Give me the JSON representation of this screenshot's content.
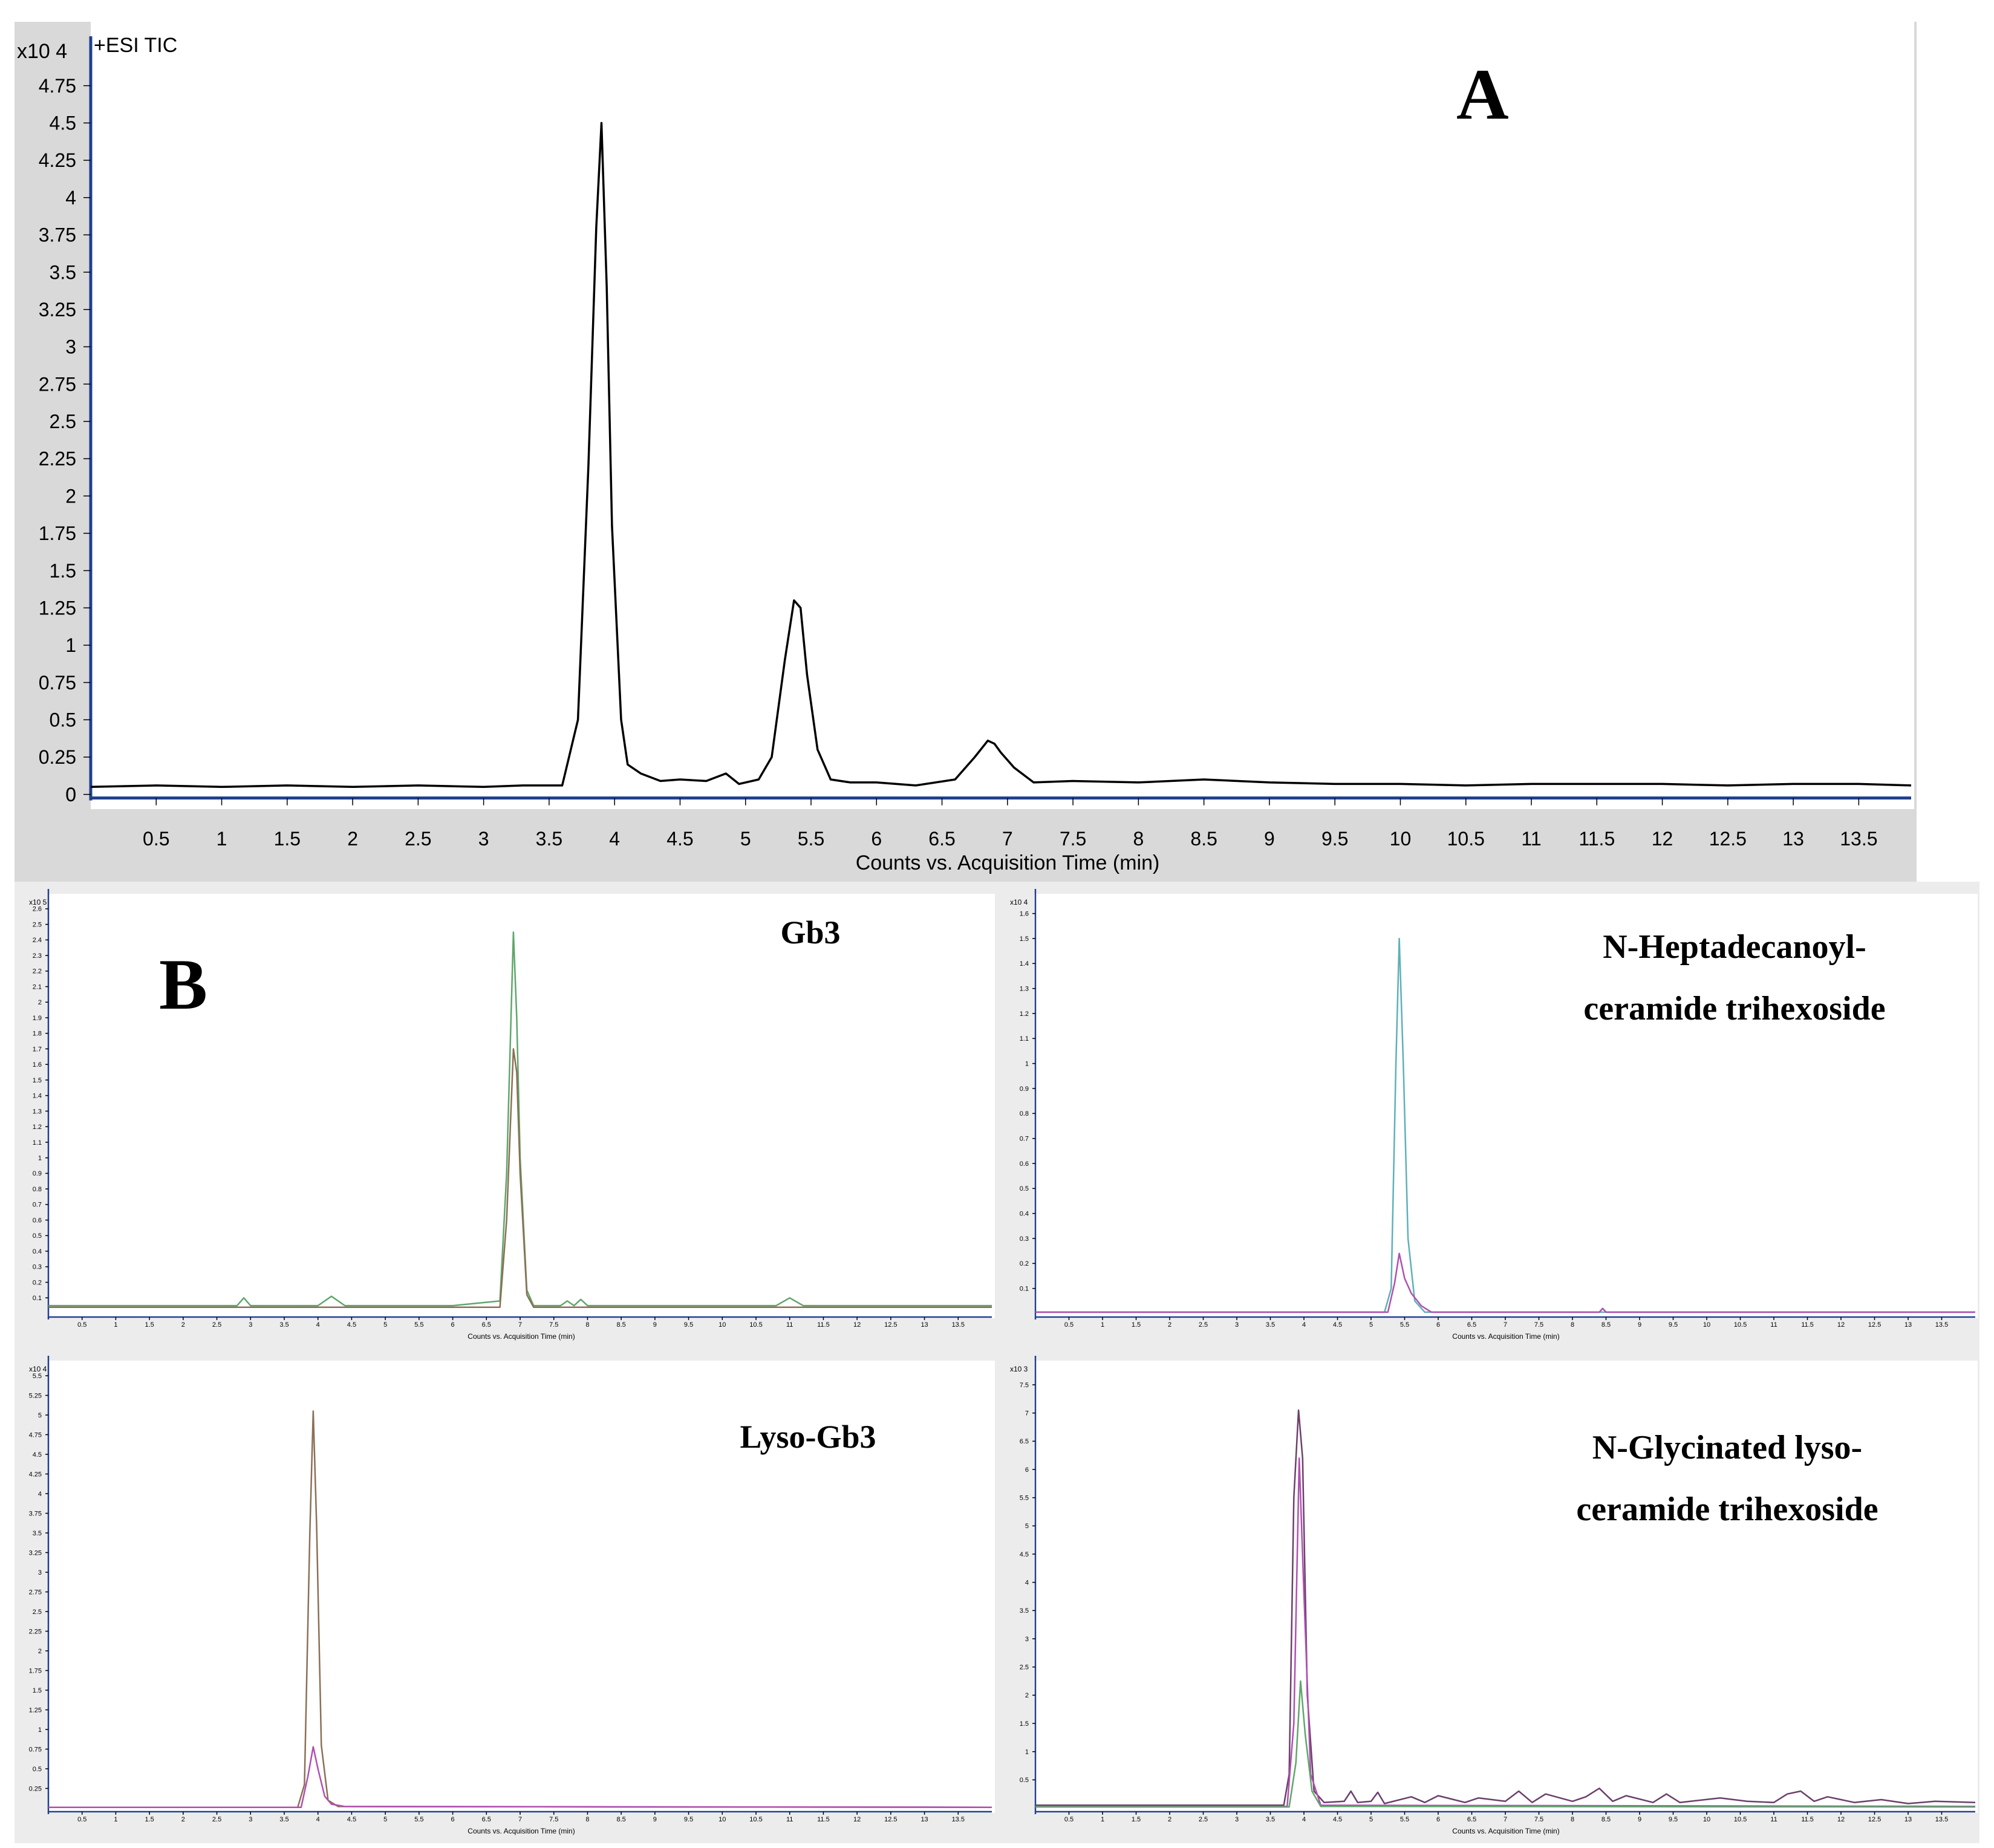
{
  "figure": {
    "panel_a_label": "A",
    "panel_b_label": "B",
    "colors": {
      "frame_gray": "#d9d9d9",
      "axis_blue": "#1f3f8f",
      "trace_black": "#000000",
      "green": "#5fa66b",
      "brown": "#8c6f55",
      "teal": "#5fb0b8",
      "magenta": "#b04fb0",
      "purple": "#6b3f6b",
      "gray_trace": "#666666"
    }
  },
  "chart_data": [
    {
      "id": "A",
      "type": "line",
      "title": "+ESI TIC",
      "xlabel": "Counts vs. Acquisition Time (min)",
      "ylabel": "",
      "y_multiplier": "x10 4",
      "xlim": [
        0,
        13.9
      ],
      "ylim": [
        -0.05,
        5.0
      ],
      "xticks": [
        0.5,
        1,
        1.5,
        2,
        2.5,
        3,
        3.5,
        4,
        4.5,
        5,
        5.5,
        6,
        6.5,
        7,
        7.5,
        8,
        8.5,
        9,
        9.5,
        10,
        10.5,
        11,
        11.5,
        12,
        12.5,
        13,
        13.5
      ],
      "xtick_labels": [
        "0.5",
        "1",
        "1.5",
        "2",
        "2.5",
        "3",
        "3.5",
        "4",
        "4.5",
        "5",
        "5.5",
        "6",
        "6.5",
        "7",
        "7.5",
        "8",
        "8.5",
        "9",
        "9.5",
        "10",
        "10.5",
        "11",
        "11.5",
        "12",
        "12.5",
        "13",
        "13.5"
      ],
      "yticks": [
        0,
        0.25,
        0.5,
        0.75,
        1,
        1.25,
        1.5,
        1.75,
        2,
        2.25,
        2.5,
        2.75,
        3,
        3.25,
        3.5,
        3.75,
        4,
        4.25,
        4.5,
        4.75
      ],
      "ytick_labels": [
        "0",
        "0.25",
        "0.5",
        "0.75",
        "1",
        "1.25",
        "1.5",
        "1.75",
        "2",
        "2.25",
        "2.5",
        "2.75",
        "3",
        "3.25",
        "3.5",
        "3.75",
        "4",
        "4.25",
        "4.5",
        "4.75"
      ],
      "series": [
        {
          "color": "#000000",
          "x": [
            0,
            0.5,
            1,
            1.5,
            2,
            2.5,
            3,
            3.3,
            3.6,
            3.72,
            3.8,
            3.86,
            3.9,
            3.94,
            3.98,
            4.05,
            4.1,
            4.2,
            4.35,
            4.5,
            4.7,
            4.85,
            4.95,
            5.1,
            5.2,
            5.3,
            5.37,
            5.42,
            5.47,
            5.55,
            5.65,
            5.8,
            6.0,
            6.3,
            6.6,
            6.75,
            6.85,
            6.9,
            6.95,
            7.05,
            7.2,
            7.5,
            8.0,
            8.5,
            9.0,
            9.5,
            10.0,
            10.5,
            11.0,
            11.5,
            12.0,
            12.5,
            13.0,
            13.5,
            13.9
          ],
          "y": [
            0.05,
            0.06,
            0.05,
            0.06,
            0.05,
            0.06,
            0.05,
            0.06,
            0.06,
            0.5,
            2.2,
            3.8,
            4.5,
            3.4,
            1.8,
            0.5,
            0.2,
            0.14,
            0.09,
            0.1,
            0.09,
            0.14,
            0.07,
            0.1,
            0.25,
            0.9,
            1.3,
            1.25,
            0.8,
            0.3,
            0.1,
            0.08,
            0.08,
            0.06,
            0.1,
            0.25,
            0.36,
            0.34,
            0.28,
            0.18,
            0.08,
            0.09,
            0.08,
            0.1,
            0.08,
            0.07,
            0.07,
            0.06,
            0.07,
            0.07,
            0.07,
            0.06,
            0.07,
            0.07,
            0.06
          ]
        }
      ]
    },
    {
      "id": "B1",
      "type": "line",
      "annotation": "Gb3",
      "xlabel": "Counts vs. Acquisition Time (min)",
      "y_multiplier": "x10 5",
      "xlim": [
        0,
        14
      ],
      "ylim": [
        0,
        2.65
      ],
      "xticks": [
        0.5,
        1,
        1.5,
        2,
        2.5,
        3,
        3.5,
        4,
        4.5,
        5,
        5.5,
        6,
        6.5,
        7,
        7.5,
        8,
        8.5,
        9,
        9.5,
        10,
        10.5,
        11,
        11.5,
        12,
        12.5,
        13,
        13.5
      ],
      "xtick_labels": [
        "0.5",
        "1",
        "1.5",
        "2",
        "2.5",
        "3",
        "3.5",
        "4",
        "4.5",
        "5",
        "5.5",
        "6",
        "6.5",
        "7",
        "7.5",
        "8",
        "8.5",
        "9",
        "9.5",
        "10",
        "10.5",
        "11",
        "11.5",
        "12",
        "12.5",
        "13",
        "13.5"
      ],
      "yticks": [
        0.1,
        0.2,
        0.3,
        0.4,
        0.5,
        0.6,
        0.7,
        0.8,
        0.9,
        1,
        1.1,
        1.2,
        1.3,
        1.4,
        1.5,
        1.6,
        1.7,
        1.8,
        1.9,
        2,
        2.1,
        2.2,
        2.3,
        2.4,
        2.5,
        2.6
      ],
      "ytick_labels": [
        "0.1",
        "0.2",
        "0.3",
        "0.4",
        "0.5",
        "0.6",
        "0.7",
        "0.8",
        "0.9",
        "1",
        "1.1",
        "1.2",
        "1.3",
        "1.4",
        "1.5",
        "1.6",
        "1.7",
        "1.8",
        "1.9",
        "2",
        "2.1",
        "2.2",
        "2.3",
        "2.4",
        "2.5",
        "2.6"
      ],
      "series": [
        {
          "color": "#5fa66b",
          "x": [
            0,
            2.8,
            2.9,
            3.0,
            4.0,
            4.2,
            4.4,
            6.0,
            6.7,
            6.8,
            6.9,
            6.95,
            7.0,
            7.1,
            7.2,
            7.6,
            7.7,
            7.8,
            7.9,
            8.0,
            8.2,
            10.8,
            11.0,
            11.2,
            14
          ],
          "y": [
            0.05,
            0.05,
            0.1,
            0.05,
            0.05,
            0.11,
            0.05,
            0.05,
            0.08,
            0.9,
            2.45,
            1.9,
            1.0,
            0.15,
            0.05,
            0.05,
            0.08,
            0.05,
            0.09,
            0.05,
            0.05,
            0.05,
            0.1,
            0.05,
            0.05
          ]
        },
        {
          "color": "#8c6f55",
          "x": [
            0,
            6.7,
            6.8,
            6.9,
            6.95,
            7.0,
            7.1,
            7.2,
            14
          ],
          "y": [
            0.04,
            0.04,
            0.6,
            1.7,
            1.55,
            0.9,
            0.12,
            0.04,
            0.04
          ]
        }
      ]
    },
    {
      "id": "B2",
      "type": "line",
      "annotation": "N-Heptadecanoyl-ceramide trihexoside",
      "xlabel": "Counts vs. Acquisition Time (min)",
      "y_multiplier": "x10 4",
      "xlim": [
        0,
        14
      ],
      "ylim": [
        0,
        1.65
      ],
      "xticks": [
        0.5,
        1,
        1.5,
        2,
        2.5,
        3,
        3.5,
        4,
        4.5,
        5,
        5.5,
        6,
        6.5,
        7,
        7.5,
        8,
        8.5,
        9,
        9.5,
        10,
        10.5,
        11,
        11.5,
        12,
        12.5,
        13,
        13.5
      ],
      "xtick_labels": [
        "0.5",
        "1",
        "1.5",
        "2",
        "2.5",
        "3",
        "3.5",
        "4",
        "4.5",
        "5",
        "5.5",
        "6",
        "6.5",
        "7",
        "7.5",
        "8",
        "8.5",
        "9",
        "9.5",
        "10",
        "10.5",
        "11",
        "11.5",
        "12",
        "12.5",
        "13",
        "13.5"
      ],
      "yticks": [
        0.1,
        0.2,
        0.3,
        0.4,
        0.5,
        0.6,
        0.7,
        0.8,
        0.9,
        1,
        1.1,
        1.2,
        1.3,
        1.4,
        1.5,
        1.6
      ],
      "ytick_labels": [
        "0.1",
        "0.2",
        "0.3",
        "0.4",
        "0.5",
        "0.6",
        "0.7",
        "0.8",
        "0.9",
        "1",
        "1.1",
        "1.2",
        "1.3",
        "1.4",
        "1.5",
        "1.6"
      ],
      "series": [
        {
          "color": "#5fb0b8",
          "x": [
            0,
            5.2,
            5.3,
            5.37,
            5.42,
            5.48,
            5.55,
            5.65,
            5.8,
            14
          ],
          "y": [
            0.005,
            0.005,
            0.1,
            1.0,
            1.5,
            1.0,
            0.3,
            0.05,
            0.005,
            0.005
          ]
        },
        {
          "color": "#b04fb0",
          "x": [
            0,
            5.25,
            5.35,
            5.42,
            5.5,
            5.6,
            5.75,
            5.9,
            8.4,
            8.45,
            8.5,
            14
          ],
          "y": [
            0.005,
            0.005,
            0.12,
            0.24,
            0.14,
            0.08,
            0.03,
            0.005,
            0.005,
            0.02,
            0.005,
            0.005
          ]
        }
      ]
    },
    {
      "id": "B3",
      "type": "line",
      "annotation": "Lyso-Gb3",
      "xlabel": "Counts vs. Acquisition Time (min)",
      "y_multiplier": "x10 4",
      "xlim": [
        0,
        14
      ],
      "ylim": [
        0,
        5.6
      ],
      "xticks": [
        0.5,
        1,
        1.5,
        2,
        2.5,
        3,
        3.5,
        4,
        4.5,
        5,
        5.5,
        6,
        6.5,
        7,
        7.5,
        8,
        8.5,
        9,
        9.5,
        10,
        10.5,
        11,
        11.5,
        12,
        12.5,
        13,
        13.5
      ],
      "xtick_labels": [
        "0.5",
        "1",
        "1.5",
        "2",
        "2.5",
        "3",
        "3.5",
        "4",
        "4.5",
        "5",
        "5.5",
        "6",
        "6.5",
        "7",
        "7.5",
        "8",
        "8.5",
        "9",
        "9.5",
        "10",
        "10.5",
        "11",
        "11.5",
        "12",
        "12.5",
        "13",
        "13.5"
      ],
      "yticks": [
        0.25,
        0.5,
        0.75,
        1,
        1.25,
        1.5,
        1.75,
        2,
        2.25,
        2.5,
        2.75,
        3,
        3.25,
        3.5,
        3.75,
        4,
        4.25,
        4.5,
        4.75,
        5,
        5.25,
        5.5
      ],
      "ytick_labels": [
        "0.25",
        "0.5",
        "0.75",
        "1",
        "1.25",
        "1.5",
        "1.75",
        "2",
        "2.25",
        "2.5",
        "2.75",
        "3",
        "3.25",
        "3.5",
        "3.75",
        "4",
        "4.25",
        "4.5",
        "4.75",
        "5",
        "5.25",
        "5.5"
      ],
      "series": [
        {
          "color": "#8c6f55",
          "x": [
            0,
            3.7,
            3.8,
            3.88,
            3.93,
            3.98,
            4.05,
            4.15,
            4.3,
            14
          ],
          "y": [
            0.01,
            0.01,
            0.3,
            3.5,
            5.05,
            3.6,
            0.8,
            0.1,
            0.02,
            0.01
          ]
        },
        {
          "color": "#b04fb0",
          "x": [
            0,
            3.75,
            3.85,
            3.93,
            4.0,
            4.1,
            4.2,
            4.4,
            14
          ],
          "y": [
            0.01,
            0.01,
            0.4,
            0.78,
            0.5,
            0.15,
            0.05,
            0.02,
            0.01
          ]
        }
      ]
    },
    {
      "id": "B4",
      "type": "line",
      "annotation": "N-Glycinated lyso-ceramide trihexoside",
      "xlabel": "Counts vs. Acquisition Time (min)",
      "y_multiplier": "x10 3",
      "xlim": [
        0,
        14
      ],
      "ylim": [
        0,
        7.8
      ],
      "xticks": [
        0.5,
        1,
        1.5,
        2,
        2.5,
        3,
        3.5,
        4,
        4.5,
        5,
        5.5,
        6,
        6.5,
        7,
        7.5,
        8,
        8.5,
        9,
        9.5,
        10,
        10.5,
        11,
        11.5,
        12,
        12.5,
        13,
        13.5
      ],
      "xtick_labels": [
        "0.5",
        "1",
        "1.5",
        "2",
        "2.5",
        "3",
        "3.5",
        "4",
        "4.5",
        "5",
        "5.5",
        "6",
        "6.5",
        "7",
        "7.5",
        "8",
        "8.5",
        "9",
        "9.5",
        "10",
        "10.5",
        "11",
        "11.5",
        "12",
        "12.5",
        "13",
        "13.5"
      ],
      "yticks": [
        0.5,
        1,
        1.5,
        2,
        2.5,
        3,
        3.5,
        4,
        4.5,
        5,
        5.5,
        6,
        6.5,
        7,
        7.5
      ],
      "ytick_labels": [
        "0.5",
        "1",
        "1.5",
        "2",
        "2.5",
        "3",
        "3.5",
        "4",
        "4.5",
        "5",
        "5.5",
        "6",
        "6.5",
        "7",
        "7.5"
      ],
      "series": [
        {
          "color": "#6b3f6b",
          "x": [
            0,
            3.7,
            3.78,
            3.85,
            3.92,
            3.98,
            4.05,
            4.15,
            4.3,
            4.6,
            4.7,
            4.8,
            5.0,
            5.1,
            5.2,
            5.6,
            5.8,
            6.0,
            6.4,
            6.6,
            7.0,
            7.2,
            7.4,
            7.6,
            8.0,
            8.2,
            8.4,
            8.6,
            8.8,
            9.2,
            9.4,
            9.6,
            10.2,
            10.6,
            11.0,
            11.2,
            11.4,
            11.6,
            11.8,
            12.2,
            12.6,
            13.0,
            13.4,
            14
          ],
          "y": [
            0.05,
            0.05,
            0.6,
            5.5,
            7.05,
            6.2,
            2.0,
            0.3,
            0.1,
            0.12,
            0.3,
            0.1,
            0.12,
            0.28,
            0.08,
            0.2,
            0.1,
            0.22,
            0.1,
            0.18,
            0.12,
            0.3,
            0.1,
            0.25,
            0.12,
            0.2,
            0.35,
            0.12,
            0.22,
            0.1,
            0.25,
            0.1,
            0.18,
            0.12,
            0.1,
            0.25,
            0.3,
            0.12,
            0.2,
            0.1,
            0.15,
            0.08,
            0.12,
            0.1
          ]
        },
        {
          "color": "#b04fb0",
          "x": [
            0,
            3.75,
            3.85,
            3.93,
            4.0,
            4.1,
            4.25,
            14
          ],
          "y": [
            0.03,
            0.03,
            1.5,
            6.2,
            3.8,
            0.6,
            0.05,
            0.03
          ]
        },
        {
          "color": "#5fa66b",
          "x": [
            0,
            3.78,
            3.88,
            3.95,
            4.02,
            4.12,
            4.25,
            14
          ],
          "y": [
            0.02,
            0.02,
            0.8,
            2.25,
            1.3,
            0.3,
            0.03,
            0.02
          ]
        }
      ]
    }
  ]
}
